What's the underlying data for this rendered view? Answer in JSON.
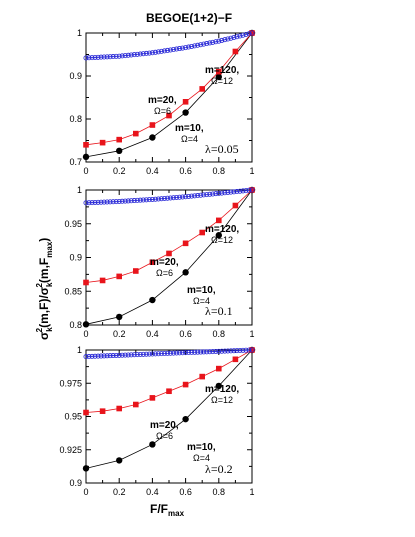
{
  "title": "BEGOE(1+2)−F",
  "xlabel": "F/F",
  "xlabel_sub": "max",
  "ylabel": {
    "sigma": "σ",
    "k": "k",
    "sq": "2",
    "mid": "(m,F)/",
    "end_pre": "(m,F",
    "max": "max",
    "close": ")"
  },
  "colors": {
    "m10": "#000000",
    "m20": "#e8141b",
    "m120": "#2525d6"
  },
  "chart_data": [
    {
      "type": "line",
      "x": [
        0,
        0.2,
        0.4,
        0.5,
        0.6,
        0.7,
        0.8,
        0.9,
        1.0
      ],
      "xlim": [
        0,
        1
      ],
      "ylim": [
        0.7,
        1
      ],
      "yticks": [
        0.7,
        0.8,
        0.9,
        1
      ],
      "ytick_labels": [
        "0.7",
        "0.8",
        "0.9",
        "1"
      ],
      "xticks": [
        0,
        0.2,
        0.4,
        0.6,
        0.8,
        1
      ],
      "xtick_labels": [
        "0",
        "0.2",
        "0.4",
        "0.6",
        "0.8",
        "1"
      ],
      "lambda_label": "λ=0.05",
      "series": [
        {
          "key": "m10",
          "marker": "circle",
          "label_m": "m=10,",
          "label_omega": "Ω=4",
          "x": [
            0,
            0.2,
            0.4,
            0.6,
            0.8,
            1.0
          ],
          "y": [
            0.712,
            0.726,
            0.757,
            0.815,
            0.898,
            1.0
          ]
        },
        {
          "key": "m20",
          "marker": "square",
          "label_m": "m=20,",
          "label_omega": "Ω=6",
          "x": [
            0,
            0.1,
            0.2,
            0.3,
            0.4,
            0.5,
            0.6,
            0.7,
            0.8,
            0.9,
            1.0
          ],
          "y": [
            0.74,
            0.745,
            0.752,
            0.766,
            0.786,
            0.808,
            0.84,
            0.87,
            0.91,
            0.957,
            1.0
          ]
        },
        {
          "key": "m120",
          "marker": "open-circle",
          "label_m": "m=120,",
          "label_omega": "Ω=12",
          "dense": true,
          "x": [
            0,
            0.2,
            0.4,
            0.6,
            0.8,
            1.0
          ],
          "y": [
            0.942,
            0.946,
            0.954,
            0.966,
            0.981,
            1.0
          ]
        }
      ]
    },
    {
      "type": "line",
      "xlim": [
        0,
        1
      ],
      "ylim": [
        0.8,
        1
      ],
      "yticks": [
        0.8,
        0.85,
        0.9,
        0.95,
        1
      ],
      "ytick_labels": [
        "0.8",
        "0.85",
        "0.9",
        "0.95",
        "1"
      ],
      "xticks": [
        0,
        0.2,
        0.4,
        0.6,
        0.8,
        1
      ],
      "xtick_labels": [
        "0",
        "0.2",
        "0.4",
        "0.6",
        "0.8",
        "1"
      ],
      "lambda_label": "λ=0.1",
      "series": [
        {
          "key": "m10",
          "marker": "circle",
          "label_m": "m=10,",
          "label_omega": "Ω=4",
          "x": [
            0,
            0.2,
            0.4,
            0.6,
            0.8,
            1.0
          ],
          "y": [
            0.801,
            0.812,
            0.837,
            0.878,
            0.933,
            1.0
          ]
        },
        {
          "key": "m20",
          "marker": "square",
          "label_m": "m=20,",
          "label_omega": "Ω=6",
          "x": [
            0,
            0.1,
            0.2,
            0.3,
            0.4,
            0.5,
            0.6,
            0.7,
            0.8,
            0.9,
            1.0
          ],
          "y": [
            0.863,
            0.866,
            0.872,
            0.88,
            0.893,
            0.906,
            0.921,
            0.937,
            0.955,
            0.977,
            1.0
          ]
        },
        {
          "key": "m120",
          "marker": "open-circle",
          "label_m": "m=120,",
          "label_omega": "Ω=12",
          "dense": true,
          "x": [
            0,
            0.2,
            0.4,
            0.6,
            0.8,
            1.0
          ],
          "y": [
            0.981,
            0.983,
            0.986,
            0.99,
            0.995,
            1.0
          ]
        }
      ]
    },
    {
      "type": "line",
      "xlim": [
        0,
        1
      ],
      "ylim": [
        0.9,
        1
      ],
      "yticks": [
        0.9,
        0.925,
        0.95,
        0.975,
        1
      ],
      "ytick_labels": [
        "0.9",
        "0.925",
        "0.95",
        "0.975",
        "1"
      ],
      "xticks": [
        0,
        0.2,
        0.4,
        0.6,
        0.8,
        1
      ],
      "xtick_labels": [
        "0",
        "0.2",
        "0.4",
        "0.6",
        "0.8",
        "1"
      ],
      "lambda_label": "λ=0.2",
      "series": [
        {
          "key": "m10",
          "marker": "circle",
          "label_m": "m=10,",
          "label_omega": "Ω=4",
          "x": [
            0,
            0.2,
            0.4,
            0.6,
            0.8,
            1.0
          ],
          "y": [
            0.911,
            0.917,
            0.929,
            0.948,
            0.973,
            1.0
          ]
        },
        {
          "key": "m20",
          "marker": "square",
          "label_m": "m=20,",
          "label_omega": "Ω=6",
          "x": [
            0,
            0.1,
            0.2,
            0.3,
            0.4,
            0.5,
            0.6,
            0.7,
            0.8,
            0.9,
            1.0
          ],
          "y": [
            0.953,
            0.954,
            0.956,
            0.959,
            0.964,
            0.969,
            0.974,
            0.98,
            0.986,
            0.993,
            1.0
          ]
        },
        {
          "key": "m120",
          "marker": "open-circle",
          "label_m": "m=120,",
          "label_omega": "Ω=12",
          "dense": true,
          "x": [
            0,
            0.2,
            0.4,
            0.6,
            0.8,
            1.0
          ],
          "y": [
            0.995,
            0.996,
            0.997,
            0.998,
            0.999,
            1.0
          ]
        }
      ]
    }
  ]
}
